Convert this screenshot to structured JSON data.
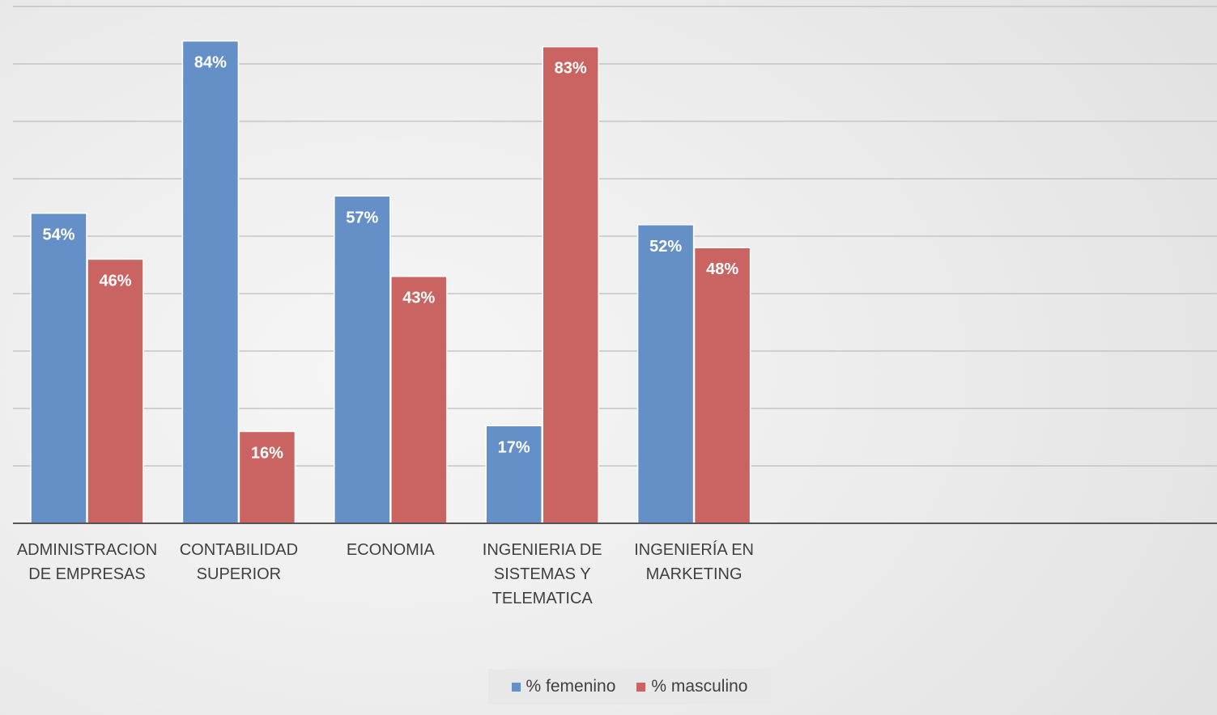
{
  "chart_data": {
    "type": "bar",
    "title": "",
    "xlabel": "",
    "ylabel": "",
    "ylim": [
      0,
      0.9
    ],
    "grid": true,
    "y_tick_labels_shown": false,
    "legend_position": "bottom",
    "categories": [
      [
        "ADMINISTRACION",
        "DE EMPRESAS"
      ],
      [
        "CONTABILIDAD",
        "SUPERIOR"
      ],
      [
        "ECONOMIA"
      ],
      [
        "INGENIERIA DE",
        "SISTEMAS Y",
        "TELEMATICA"
      ],
      [
        "INGENIERÍA EN",
        "MARKETING"
      ]
    ],
    "series": [
      {
        "name": "% femenino",
        "color": "#6590c7",
        "values": [
          0.54,
          0.84,
          0.57,
          0.17,
          0.52
        ],
        "labels": [
          "54%",
          "84%",
          "57%",
          "17%",
          "52%"
        ]
      },
      {
        "name": "% masculino",
        "color": "#c96462",
        "values": [
          0.46,
          0.16,
          0.43,
          0.83,
          0.48
        ],
        "labels": [
          "46%",
          "16%",
          "43%",
          "83%",
          "48%"
        ]
      }
    ]
  }
}
